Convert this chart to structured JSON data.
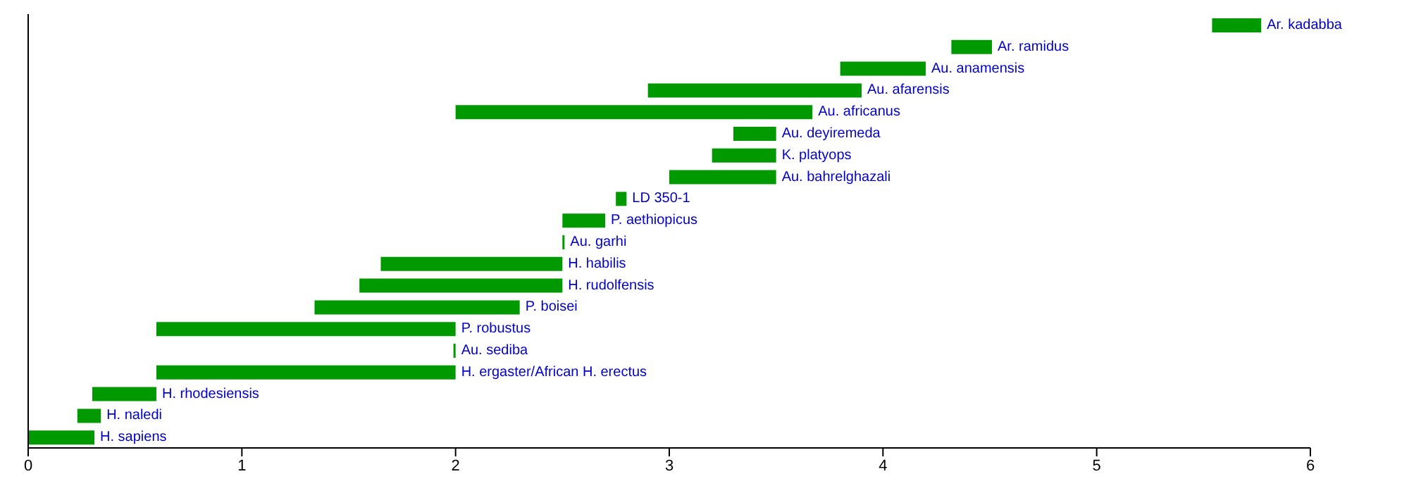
{
  "chart_data": {
    "type": "bar",
    "orientation": "horizontal",
    "tick_labels": "x",
    "grid": false,
    "categories": [
      "Ar. kadabba",
      "Ar. ramidus",
      "Au. anamensis",
      "Au. afarensis",
      "Au. africanus",
      "Au. deyiremeda",
      "K. platyops",
      "Au. bahrelghazali",
      "LD 350-1",
      "P. aethiopicus",
      "Au. garhi",
      "H. habilis",
      "H. rudolfensis",
      "P. boisei",
      "P. robustus",
      "Au. sediba",
      "H. ergaster/African H. erectus",
      "H. rhodesiensis",
      "H. naledi",
      "H. sapiens"
    ],
    "base": [
      5.54,
      4.32,
      3.8,
      2.9,
      2.0,
      3.3,
      3.2,
      3.0,
      2.75,
      2.5,
      2.5,
      1.65,
      1.55,
      1.34,
      0.6,
      1.99,
      0.6,
      0.3,
      0.23,
      0
    ],
    "values": [
      0.23,
      0.19,
      0.4,
      1.0,
      1.67,
      0.2,
      0.3,
      0.5,
      0.05,
      0.2,
      0.01,
      0.85,
      0.95,
      0.96,
      1.4,
      0.01,
      1.4,
      0.3,
      0.11,
      0.31
    ],
    "color": "#009900",
    "xlim": [
      0,
      6
    ],
    "xticks": [
      0,
      1,
      2,
      3,
      4,
      5,
      6
    ]
  }
}
